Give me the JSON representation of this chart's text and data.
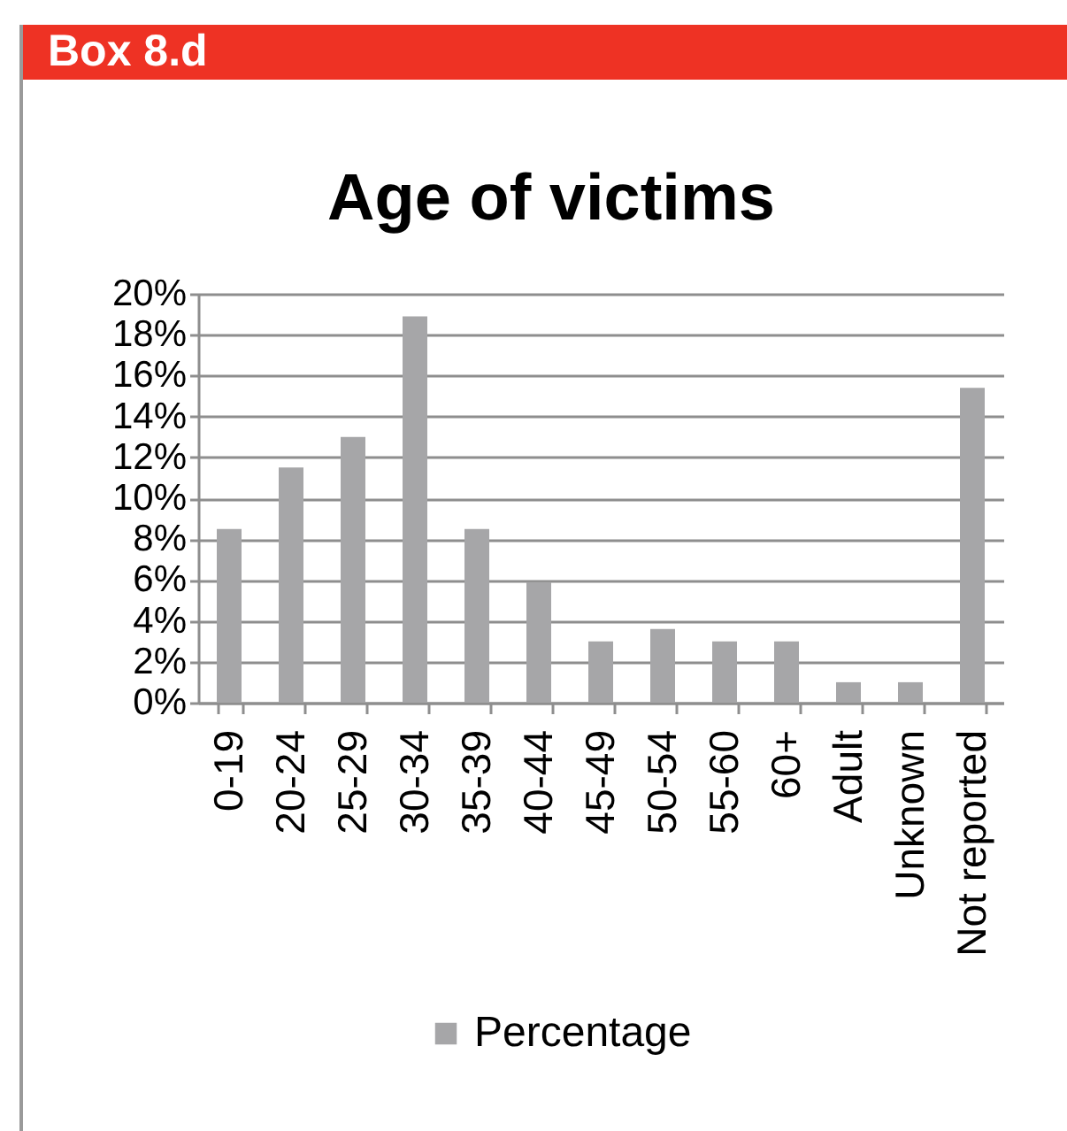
{
  "chart_data": {
    "type": "bar",
    "title": "Age of victims",
    "annotations": [
      "Box 8.d"
    ],
    "categories": [
      "0-19",
      "20-24",
      "25-29",
      "30-34",
      "35-39",
      "40-44",
      "45-49",
      "50-54",
      "55-60",
      "60+",
      "Adult",
      "Unknown",
      "Not reported"
    ],
    "series": [
      {
        "name": "Percentage",
        "color": "#a6a6a8",
        "values": [
          8.5,
          11.5,
          13.0,
          18.9,
          8.5,
          5.9,
          3.0,
          3.6,
          3.0,
          3.0,
          1.0,
          1.0,
          15.4
        ]
      }
    ],
    "ylim": [
      0,
      20
    ],
    "yticks": [
      {
        "value": 0,
        "label": "0%"
      },
      {
        "value": 2,
        "label": "2%"
      },
      {
        "value": 4,
        "label": "4%"
      },
      {
        "value": 6,
        "label": "6%"
      },
      {
        "value": 8,
        "label": "8%"
      },
      {
        "value": 10,
        "label": "10%"
      },
      {
        "value": 12,
        "label": "12%"
      },
      {
        "value": 14,
        "label": "14%"
      },
      {
        "value": 16,
        "label": "16%"
      },
      {
        "value": 18,
        "label": "18%"
      },
      {
        "value": 20,
        "label": "20%"
      }
    ],
    "grid": "y",
    "legend": "bottom"
  }
}
